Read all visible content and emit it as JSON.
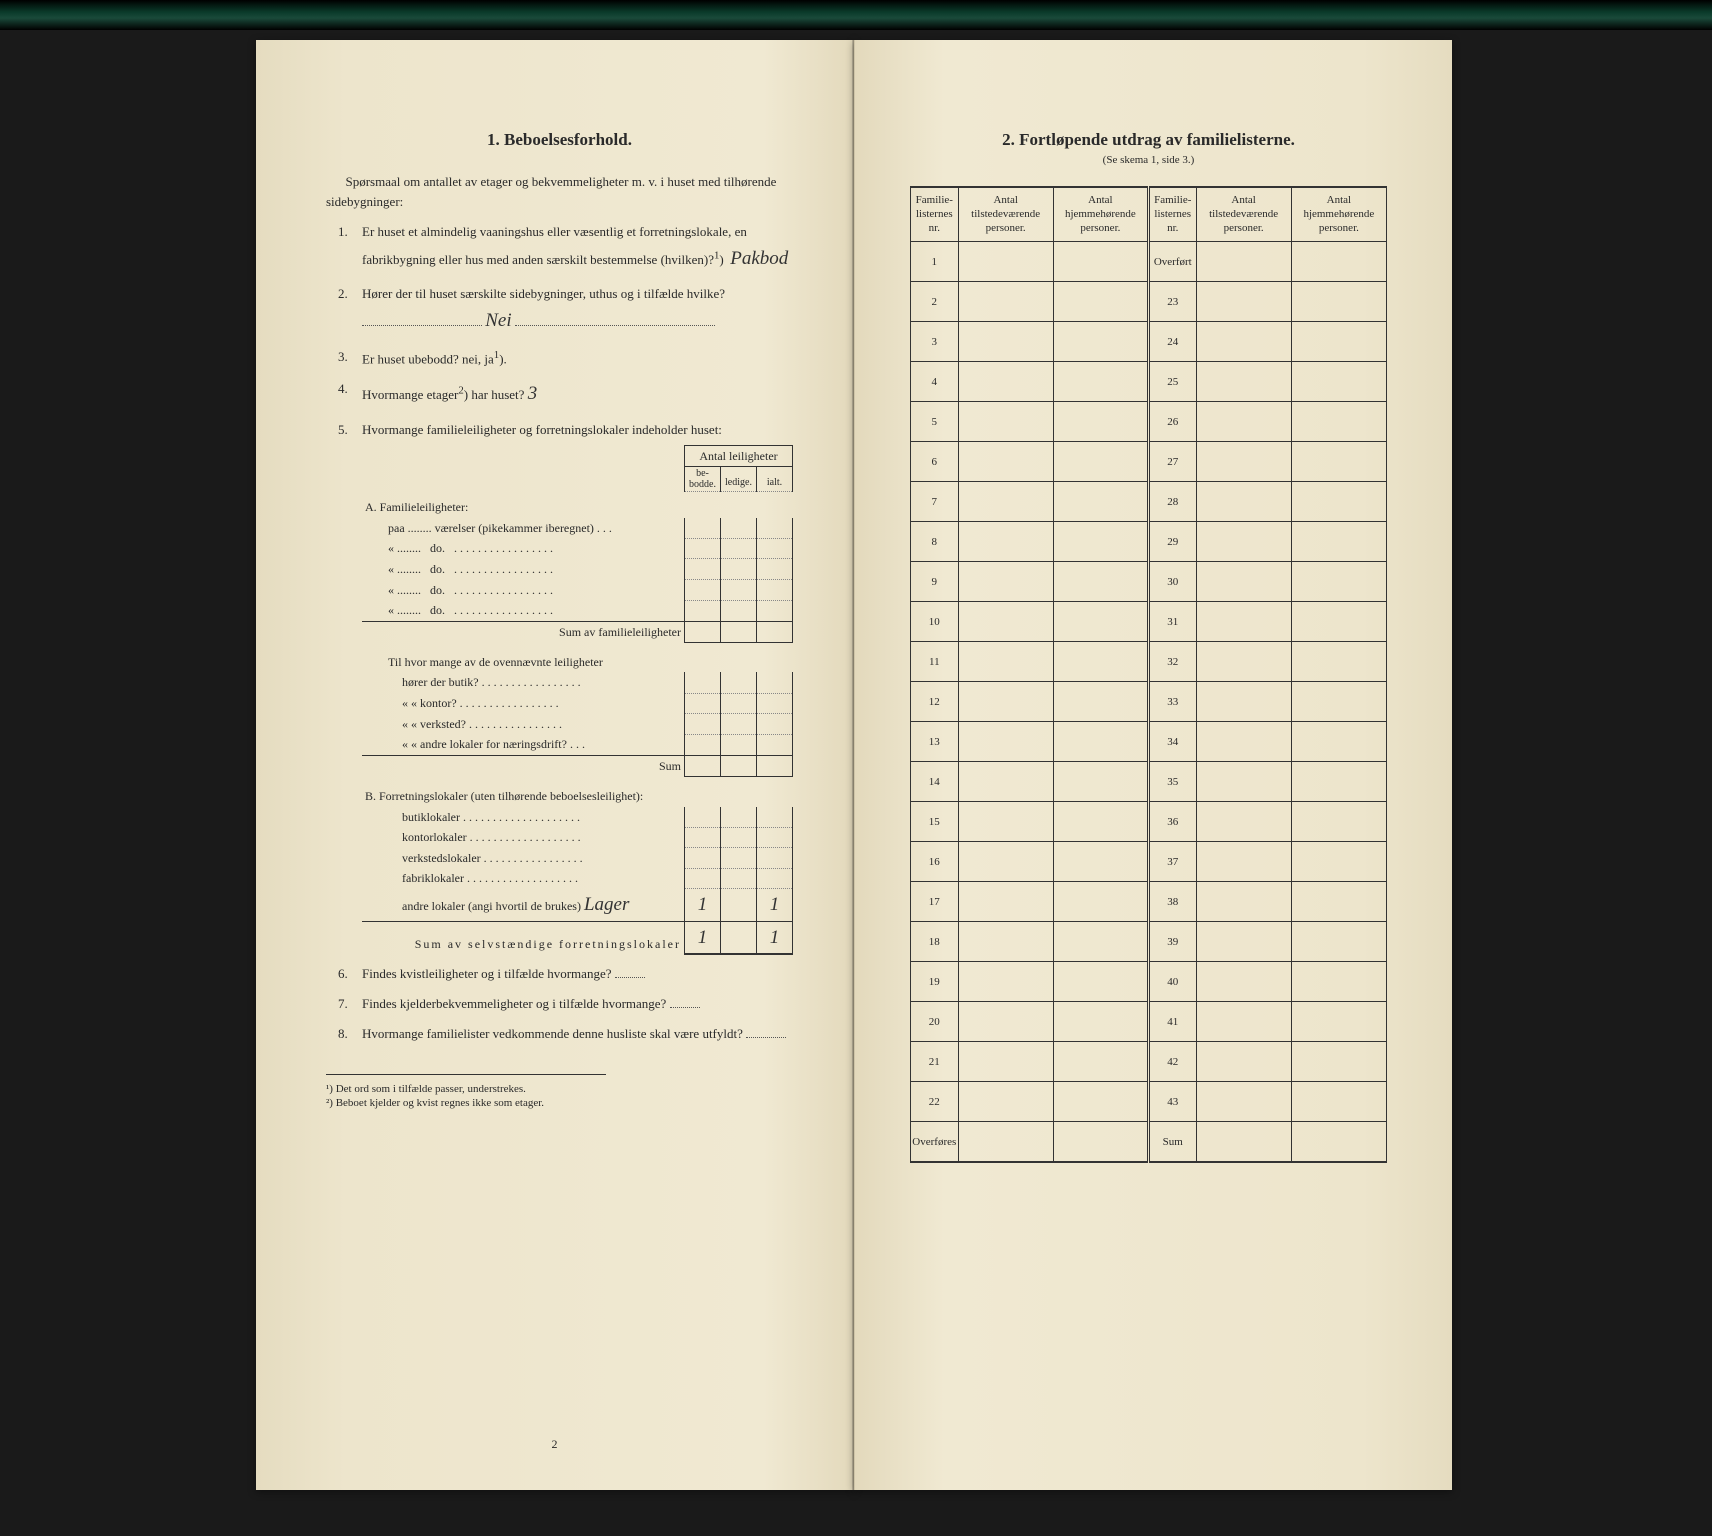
{
  "left": {
    "heading": "1.   Beboelsesforhold.",
    "intro": "Spørsmaal om antallet av etager og bekvemmeligheter m. v. i huset med tilhørende sidebygninger:",
    "q1": "Er huset et almindelig vaaningshus eller væsentlig et forretningslokale, en fabrikbygning eller hus med anden særskilt bestemmelse (hvilken)?",
    "q1_sup": "1",
    "q1_ans": "Pakbod",
    "q2": "Hører der til huset særskilte sidebygninger, uthus og i tilfælde hvilke?",
    "q2_ans": "Nei",
    "q3": "Er huset ubebodd?  nei,  ja",
    "q3_sup": "1",
    "q4": "Hvormange etager",
    "q4_sup": "2",
    "q4_rest": ") har huset?",
    "q4_ans": "3",
    "q5": "Hvormange familieleiligheter og forretningslokaler indeholder huset:",
    "q5_header_main": "Antal leiligheter",
    "q5_h1": "be-\nbodde.",
    "q5_h2": "ledige.",
    "q5_h3": "ialt.",
    "secA_title": "A. Familieleiligheter:",
    "secA_row1": "paa ........ værelser (pikekammer iberegnet) . . .",
    "secA_do": "do.",
    "secA_sum": "Sum av familieleiligheter",
    "secA_mid": "Til hvor mange av de ovennævnte leiligheter",
    "secA_mid_rows": [
      "hører der butik? . . . . . . . . . . . . . . . . .",
      "«    «   kontor? . . . . . . . . . . . . . . . . .",
      "«    «   verksted? . . . . . . . . . . . . . . . .",
      "«    «   andre lokaler for næringsdrift? . . ."
    ],
    "secA_mid_sum": "Sum",
    "secB_title": "B. Forretningslokaler (uten tilhørende beboelsesleilighet):",
    "secB_rows": [
      "butiklokaler . . . . . . . . . . . . . . . . . . . .",
      "kontorlokaler . . . . . . . . . . . . . . . . . . .",
      "verkstedslokaler . . . . . . . . . . . . . . . . .",
      "fabriklokaler . . . . . . . . . . . . . . . . . . .",
      "andre lokaler (angi hvortil de brukes)"
    ],
    "secB_hand": "Lager",
    "secB_sum": "Sum av selvstændige forretningslokaler",
    "secB_val1": "1",
    "secB_val2": "1",
    "secB_sumval1": "1",
    "secB_sumval2": "1",
    "q6": "Findes kvistleiligheter og i tilfælde hvormange?",
    "q7": "Findes kjelderbekvemmeligheter og i tilfælde hvormange?",
    "q8": "Hvormange familielister vedkommende denne husliste skal være utfyldt?",
    "fn1": "¹) Det ord som i tilfælde passer, understrekes.",
    "fn2": "²) Beboet kjelder og kvist regnes ikke som etager.",
    "pagenum": "2"
  },
  "right": {
    "heading": "2.   Fortløpende utdrag av familielisterne.",
    "subhead": "(Se skema 1, side 3.)",
    "col1": "Familie-\nlisternes\nnr.",
    "col2": "Antal\ntilstedeværende\npersoner.",
    "col3": "Antal\nhjemmehørende\npersoner.",
    "left_nums": [
      "1",
      "2",
      "3",
      "4",
      "5",
      "6",
      "7",
      "8",
      "9",
      "10",
      "11",
      "12",
      "13",
      "14",
      "15",
      "16",
      "17",
      "18",
      "19",
      "20",
      "21",
      "22",
      "Overføres"
    ],
    "right_nums": [
      "Overført",
      "23",
      "24",
      "25",
      "26",
      "27",
      "28",
      "29",
      "30",
      "31",
      "32",
      "33",
      "34",
      "35",
      "36",
      "37",
      "38",
      "39",
      "40",
      "41",
      "42",
      "43",
      "Sum"
    ]
  }
}
